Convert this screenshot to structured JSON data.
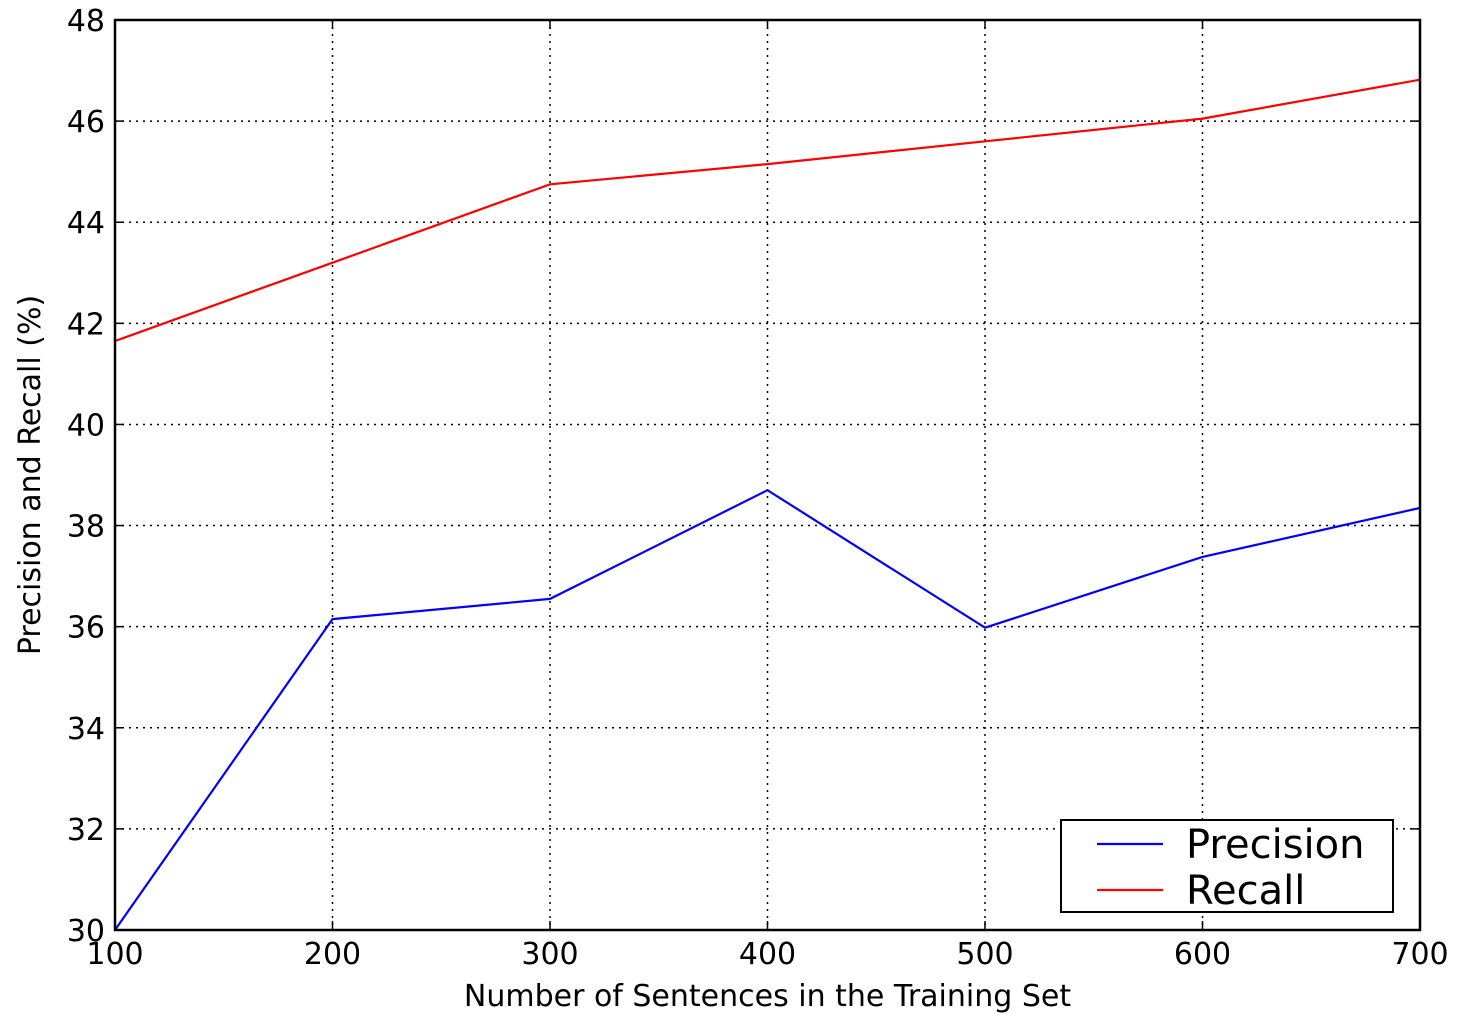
{
  "chart_data": {
    "type": "line",
    "title": "",
    "xlabel": "Number of Sentences in the Training Set",
    "ylabel": "Precision and Recall (%)",
    "xlim": [
      100,
      700
    ],
    "ylim": [
      30,
      48
    ],
    "x": [
      100,
      200,
      300,
      400,
      500,
      600,
      700
    ],
    "xticks": [
      100,
      200,
      300,
      400,
      500,
      600,
      700
    ],
    "yticks": [
      30,
      32,
      34,
      36,
      38,
      40,
      42,
      44,
      46,
      48
    ],
    "grid": true,
    "legend_position": "lower-right",
    "series": [
      {
        "name": "Precision",
        "color": "#0000ff",
        "values": [
          30.0,
          36.15,
          36.55,
          38.7,
          35.98,
          37.38,
          38.35
        ]
      },
      {
        "name": "Recall",
        "color": "#ff0000",
        "values": [
          41.65,
          43.2,
          44.75,
          45.15,
          45.6,
          46.05,
          46.82
        ]
      }
    ]
  }
}
